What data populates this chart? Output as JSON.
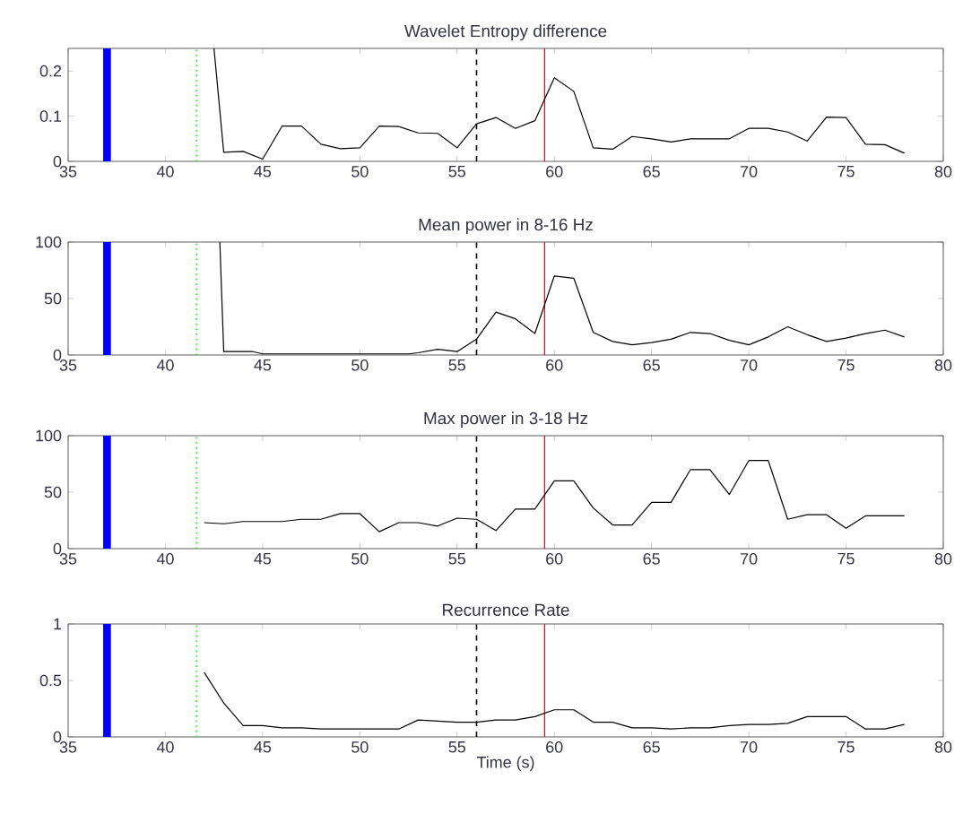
{
  "chart_data": [
    {
      "type": "line",
      "title": "Wavelet Entropy difference",
      "xlim": [
        35,
        80
      ],
      "xticks": [
        35,
        40,
        45,
        50,
        55,
        60,
        65,
        70,
        75,
        80
      ],
      "ylim": [
        0,
        0.25
      ],
      "yticks": [
        0,
        0.1,
        0.2
      ],
      "x": [
        42.5,
        43,
        44,
        45,
        46,
        47,
        48,
        49,
        50,
        51,
        52,
        53,
        54,
        55,
        56,
        57,
        58,
        59,
        60,
        61,
        62,
        63,
        64,
        65,
        66,
        67,
        68,
        69,
        70,
        71,
        72,
        73,
        74,
        75,
        76,
        77,
        78
      ],
      "series": [
        {
          "color": "#000000",
          "values": [
            0.25,
            0.02,
            0.022,
            0.005,
            0.078,
            0.078,
            0.038,
            0.028,
            0.03,
            0.078,
            0.077,
            0.063,
            0.062,
            0.03,
            0.083,
            0.097,
            0.073,
            0.09,
            0.185,
            0.155,
            0.03,
            0.027,
            0.055,
            0.05,
            0.043,
            0.05,
            0.05,
            0.05,
            0.073,
            0.073,
            0.065,
            0.045,
            0.098,
            0.097,
            0.038,
            0.037,
            0.018
          ]
        }
      ],
      "bands": [
        {
          "axis": "x",
          "from": 36.8,
          "to": 37.2,
          "color": "#0000ff"
        }
      ],
      "ref_lines": [
        {
          "axis": "x",
          "value": 41.6,
          "color": "#00ff00",
          "line_style": "dotted"
        },
        {
          "axis": "x",
          "value": 56,
          "color": "#000000",
          "line_style": "dashed"
        },
        {
          "axis": "x",
          "value": 59.5,
          "color": "#ff0000",
          "line_style": "solid"
        }
      ]
    },
    {
      "type": "line",
      "title": "Mean power in 8-16 Hz",
      "xlim": [
        35,
        80
      ],
      "xticks": [
        35,
        40,
        45,
        50,
        55,
        60,
        65,
        70,
        75,
        80
      ],
      "ylim": [
        0,
        100
      ],
      "yticks": [
        0,
        50,
        100
      ],
      "x": [
        42.8,
        43,
        44.5,
        45,
        46,
        47,
        48,
        49,
        50,
        51,
        52.5,
        53,
        54,
        55,
        56,
        57,
        58,
        59,
        60,
        61,
        62,
        63,
        64,
        65,
        66,
        67,
        68,
        69,
        70,
        71,
        72,
        73,
        74,
        75,
        76,
        77,
        78
      ],
      "series": [
        {
          "color": "#000000",
          "values": [
            100,
            3,
            3,
            1,
            1,
            1,
            1,
            1,
            1,
            1,
            1,
            2,
            5,
            3,
            14,
            38,
            32,
            19,
            70,
            68,
            20,
            12,
            9,
            11,
            14,
            20,
            19,
            13,
            9,
            16,
            25,
            18,
            12,
            15,
            19,
            22,
            16
          ]
        }
      ],
      "bands": [
        {
          "axis": "x",
          "from": 36.8,
          "to": 37.2,
          "color": "#0000ff"
        }
      ],
      "ref_lines": [
        {
          "axis": "x",
          "value": 41.6,
          "color": "#00ff00",
          "line_style": "dotted"
        },
        {
          "axis": "x",
          "value": 56,
          "color": "#000000",
          "line_style": "dashed"
        },
        {
          "axis": "x",
          "value": 59.5,
          "color": "#ff0000",
          "line_style": "solid"
        }
      ]
    },
    {
      "type": "line",
      "title": "Max power in 3-18 Hz",
      "xlim": [
        35,
        80
      ],
      "xticks": [
        35,
        40,
        45,
        50,
        55,
        60,
        65,
        70,
        75,
        80
      ],
      "ylim": [
        0,
        100
      ],
      "yticks": [
        0,
        50,
        100
      ],
      "x": [
        42,
        43,
        44,
        45,
        46,
        47,
        48,
        49,
        50,
        51,
        52,
        53,
        54,
        55,
        56,
        57,
        58,
        59,
        60,
        61,
        62,
        63,
        64,
        65,
        66,
        67,
        68,
        69,
        70,
        71,
        72,
        73,
        74,
        75,
        76,
        77,
        78
      ],
      "series": [
        {
          "color": "#000000",
          "values": [
            23,
            22,
            24,
            24,
            24,
            26,
            26,
            31,
            31,
            15,
            23,
            23,
            20,
            27,
            26,
            16,
            35,
            35,
            60,
            60,
            36,
            21,
            21,
            41,
            41,
            70,
            70,
            48,
            78,
            78,
            26,
            30,
            30,
            18,
            29,
            29,
            29
          ]
        }
      ],
      "bands": [
        {
          "axis": "x",
          "from": 36.8,
          "to": 37.2,
          "color": "#0000ff"
        }
      ],
      "ref_lines": [
        {
          "axis": "x",
          "value": 41.6,
          "color": "#00ff00",
          "line_style": "dotted"
        },
        {
          "axis": "x",
          "value": 56,
          "color": "#000000",
          "line_style": "dashed"
        },
        {
          "axis": "x",
          "value": 59.5,
          "color": "#ff0000",
          "line_style": "solid"
        }
      ]
    },
    {
      "type": "line",
      "title": "Recurrence Rate",
      "xlabel": "Time (s)",
      "xlim": [
        35,
        80
      ],
      "xticks": [
        35,
        40,
        45,
        50,
        55,
        60,
        65,
        70,
        75,
        80
      ],
      "ylim": [
        0,
        1
      ],
      "yticks": [
        0,
        0.5,
        1
      ],
      "x": [
        42,
        43,
        44,
        45,
        46,
        47,
        48,
        49,
        50,
        51,
        52,
        53,
        54,
        55,
        56,
        57,
        58,
        59,
        60,
        61,
        62,
        63,
        64,
        65,
        66,
        67,
        68,
        69,
        70,
        71,
        72,
        73,
        74,
        75,
        76,
        77,
        78
      ],
      "series": [
        {
          "color": "#000000",
          "values": [
            0.57,
            0.3,
            0.1,
            0.1,
            0.08,
            0.08,
            0.07,
            0.07,
            0.07,
            0.07,
            0.07,
            0.15,
            0.14,
            0.13,
            0.13,
            0.15,
            0.15,
            0.18,
            0.24,
            0.24,
            0.13,
            0.13,
            0.08,
            0.08,
            0.07,
            0.08,
            0.08,
            0.1,
            0.11,
            0.11,
            0.12,
            0.18,
            0.18,
            0.18,
            0.07,
            0.07,
            0.11
          ]
        }
      ],
      "bands": [
        {
          "axis": "x",
          "from": 36.8,
          "to": 37.2,
          "color": "#0000ff"
        }
      ],
      "ref_lines": [
        {
          "axis": "x",
          "value": 41.6,
          "color": "#00ff00",
          "line_style": "dotted"
        },
        {
          "axis": "x",
          "value": 56,
          "color": "#000000",
          "line_style": "dashed"
        },
        {
          "axis": "x",
          "value": 59.5,
          "color": "#ff0000",
          "line_style": "solid"
        }
      ]
    }
  ]
}
